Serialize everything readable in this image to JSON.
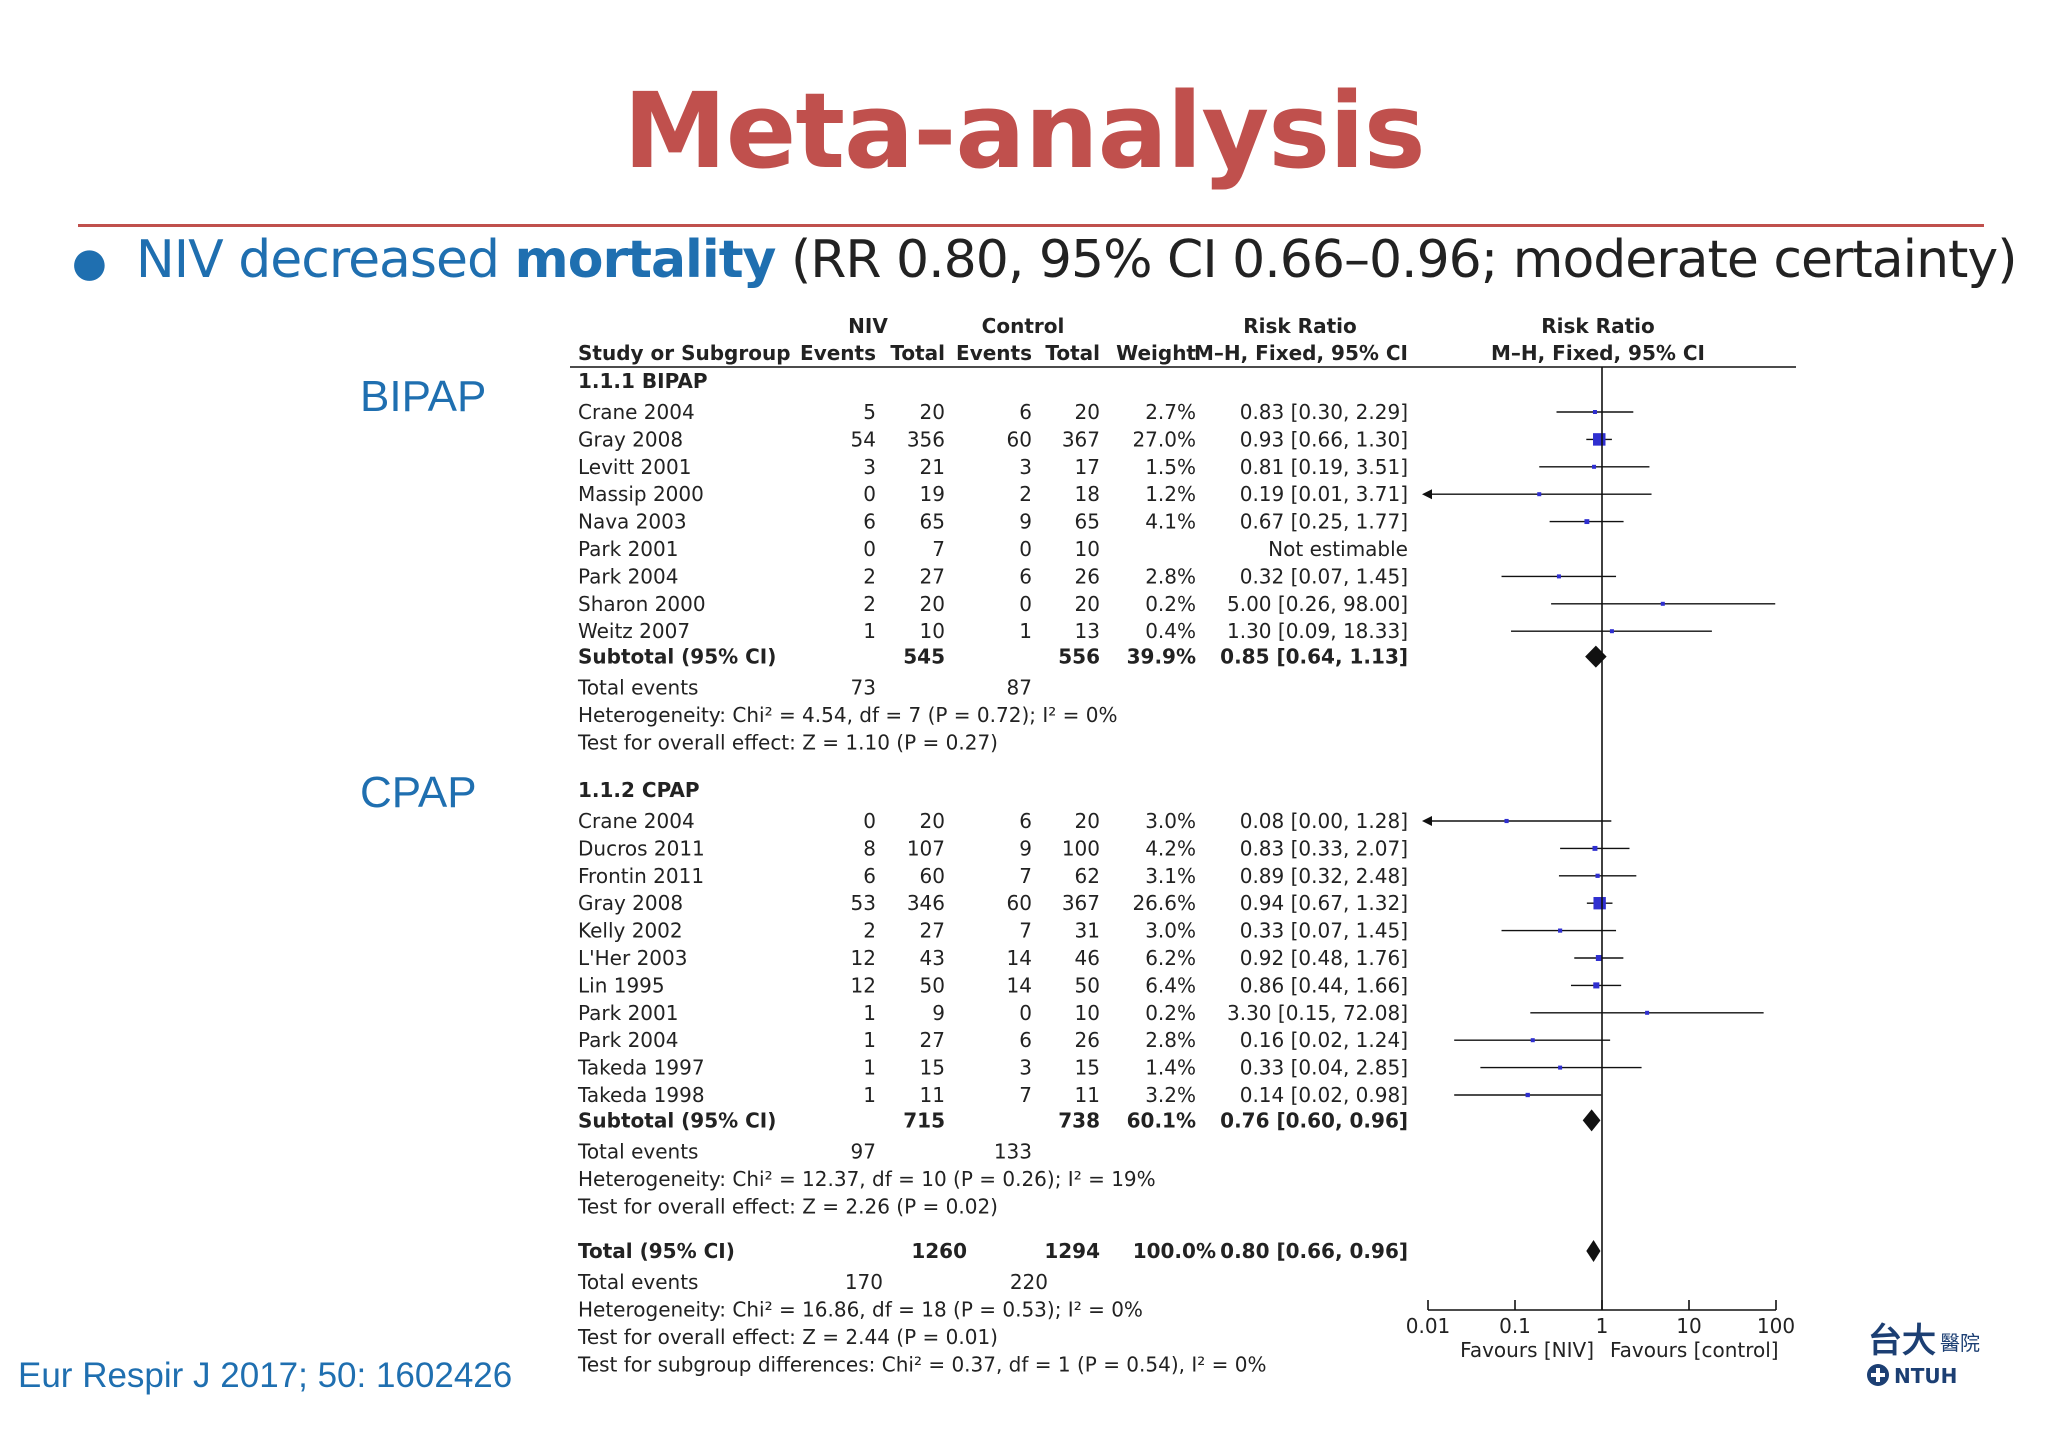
{
  "slide": {
    "title": "Meta-analysis",
    "bullet": {
      "prefix": "NIV decreased ",
      "bold": "mortality",
      "suffix": " (RR 0.80, 95% CI 0.66–0.96; moderate certainty)"
    },
    "labels": {
      "bipap": "BIPAP",
      "cpap": "CPAP"
    },
    "citation": "Eur Respir J 2017; 50: 1602426",
    "logo": {
      "chinese": "台大醫院",
      "text": "NTUH"
    }
  },
  "colors": {
    "title": "#c0504d",
    "accent": "#1f6fb0",
    "marker": "#2f2fd0"
  },
  "forest": {
    "headers": {
      "study": "Study or Subgroup",
      "niv": "NIV",
      "control": "Control",
      "events": "Events",
      "total": "Total",
      "weight": "Weight",
      "rr": "Risk Ratio",
      "method": "M–H, Fixed, 95% CI"
    },
    "axis": {
      "ticks": [
        "0.01",
        "0.1",
        "1",
        "10",
        "100"
      ],
      "left": "Favours [NIV]",
      "right": "Favours [control]"
    },
    "groups": [
      {
        "name": "1.1.1 BIPAP",
        "studies": [
          {
            "study": "Crane 2004",
            "e1": "5",
            "t1": "20",
            "e2": "6",
            "t2": "20",
            "w": "2.7%",
            "ci": "0.83 [0.30, 2.29]",
            "rr": 0.83,
            "lo": 0.3,
            "hi": 2.29
          },
          {
            "study": "Gray 2008",
            "e1": "54",
            "t1": "356",
            "e2": "60",
            "t2": "367",
            "w": "27.0%",
            "ci": "0.93 [0.66, 1.30]",
            "rr": 0.93,
            "lo": 0.66,
            "hi": 1.3
          },
          {
            "study": "Levitt 2001",
            "e1": "3",
            "t1": "21",
            "e2": "3",
            "t2": "17",
            "w": "1.5%",
            "ci": "0.81 [0.19, 3.51]",
            "rr": 0.81,
            "lo": 0.19,
            "hi": 3.51
          },
          {
            "study": "Massip 2000",
            "e1": "0",
            "t1": "19",
            "e2": "2",
            "t2": "18",
            "w": "1.2%",
            "ci": "0.19 [0.01, 3.71]",
            "rr": 0.19,
            "lo": 0.01,
            "hi": 3.71
          },
          {
            "study": "Nava 2003",
            "e1": "6",
            "t1": "65",
            "e2": "9",
            "t2": "65",
            "w": "4.1%",
            "ci": "0.67 [0.25, 1.77]",
            "rr": 0.67,
            "lo": 0.25,
            "hi": 1.77
          },
          {
            "study": "Park 2001",
            "e1": "0",
            "t1": "7",
            "e2": "0",
            "t2": "10",
            "w": "",
            "ci": "Not estimable",
            "rr": null,
            "lo": null,
            "hi": null
          },
          {
            "study": "Park 2004",
            "e1": "2",
            "t1": "27",
            "e2": "6",
            "t2": "26",
            "w": "2.8%",
            "ci": "0.32 [0.07, 1.45]",
            "rr": 0.32,
            "lo": 0.07,
            "hi": 1.45
          },
          {
            "study": "Sharon 2000",
            "e1": "2",
            "t1": "20",
            "e2": "0",
            "t2": "20",
            "w": "0.2%",
            "ci": "5.00 [0.26, 98.00]",
            "rr": 5.0,
            "lo": 0.26,
            "hi": 98.0
          },
          {
            "study": "Weitz 2007",
            "e1": "1",
            "t1": "10",
            "e2": "1",
            "t2": "13",
            "w": "0.4%",
            "ci": "1.30 [0.09, 18.33]",
            "rr": 1.3,
            "lo": 0.09,
            "hi": 18.33
          }
        ],
        "subtotal": {
          "label": "Subtotal (95% CI)",
          "t1": "545",
          "t2": "556",
          "w": "39.9%",
          "ci": "0.85 [0.64, 1.13]",
          "rr": 0.85,
          "lo": 0.64,
          "hi": 1.13
        },
        "total_events": {
          "label": "Total events",
          "e1": "73",
          "e2": "87"
        },
        "heterogeneity": "Heterogeneity: Chi² = 4.54, df = 7 (P = 0.72); I² = 0%",
        "overall": "Test for overall effect: Z = 1.10 (P = 0.27)"
      },
      {
        "name": "1.1.2 CPAP",
        "studies": [
          {
            "study": "Crane 2004",
            "e1": "0",
            "t1": "20",
            "e2": "6",
            "t2": "20",
            "w": "3.0%",
            "ci": "0.08 [0.00, 1.28]",
            "rr": 0.08,
            "lo": 0.005,
            "hi": 1.28
          },
          {
            "study": "Ducros 2011",
            "e1": "8",
            "t1": "107",
            "e2": "9",
            "t2": "100",
            "w": "4.2%",
            "ci": "0.83 [0.33, 2.07]",
            "rr": 0.83,
            "lo": 0.33,
            "hi": 2.07
          },
          {
            "study": "Frontin 2011",
            "e1": "6",
            "t1": "60",
            "e2": "7",
            "t2": "62",
            "w": "3.1%",
            "ci": "0.89 [0.32, 2.48]",
            "rr": 0.89,
            "lo": 0.32,
            "hi": 2.48
          },
          {
            "study": "Gray 2008",
            "e1": "53",
            "t1": "346",
            "e2": "60",
            "t2": "367",
            "w": "26.6%",
            "ci": "0.94 [0.67, 1.32]",
            "rr": 0.94,
            "lo": 0.67,
            "hi": 1.32
          },
          {
            "study": "Kelly 2002",
            "e1": "2",
            "t1": "27",
            "e2": "7",
            "t2": "31",
            "w": "3.0%",
            "ci": "0.33 [0.07, 1.45]",
            "rr": 0.33,
            "lo": 0.07,
            "hi": 1.45
          },
          {
            "study": "L'Her 2003",
            "e1": "12",
            "t1": "43",
            "e2": "14",
            "t2": "46",
            "w": "6.2%",
            "ci": "0.92 [0.48, 1.76]",
            "rr": 0.92,
            "lo": 0.48,
            "hi": 1.76
          },
          {
            "study": "Lin 1995",
            "e1": "12",
            "t1": "50",
            "e2": "14",
            "t2": "50",
            "w": "6.4%",
            "ci": "0.86 [0.44, 1.66]",
            "rr": 0.86,
            "lo": 0.44,
            "hi": 1.66
          },
          {
            "study": "Park 2001",
            "e1": "1",
            "t1": "9",
            "e2": "0",
            "t2": "10",
            "w": "0.2%",
            "ci": "3.30 [0.15, 72.08]",
            "rr": 3.3,
            "lo": 0.15,
            "hi": 72.08
          },
          {
            "study": "Park 2004",
            "e1": "1",
            "t1": "27",
            "e2": "6",
            "t2": "26",
            "w": "2.8%",
            "ci": "0.16 [0.02, 1.24]",
            "rr": 0.16,
            "lo": 0.02,
            "hi": 1.24
          },
          {
            "study": "Takeda 1997",
            "e1": "1",
            "t1": "15",
            "e2": "3",
            "t2": "15",
            "w": "1.4%",
            "ci": "0.33 [0.04, 2.85]",
            "rr": 0.33,
            "lo": 0.04,
            "hi": 2.85
          },
          {
            "study": "Takeda 1998",
            "e1": "1",
            "t1": "11",
            "e2": "7",
            "t2": "11",
            "w": "3.2%",
            "ci": "0.14 [0.02, 0.98]",
            "rr": 0.14,
            "lo": 0.02,
            "hi": 0.98
          }
        ],
        "subtotal": {
          "label": "Subtotal (95% CI)",
          "t1": "715",
          "t2": "738",
          "w": "60.1%",
          "ci": "0.76 [0.60, 0.96]",
          "rr": 0.76,
          "lo": 0.6,
          "hi": 0.96
        },
        "total_events": {
          "label": "Total events",
          "e1": "97",
          "e2": "133"
        },
        "heterogeneity": "Heterogeneity: Chi² = 12.37, df = 10 (P = 0.26); I² = 19%",
        "overall": "Test for overall effect: Z = 2.26 (P = 0.02)"
      }
    ],
    "total": {
      "label": "Total (95% CI)",
      "t1": "1260",
      "t2": "1294",
      "w": "100.0%",
      "ci": "0.80 [0.66, 0.96]",
      "rr": 0.8,
      "lo": 0.66,
      "hi": 0.96
    },
    "total_events": {
      "label": "Total events",
      "e1": "170",
      "e2": "220"
    },
    "footer": [
      "Heterogeneity: Chi² = 16.86, df = 18 (P = 0.53); I² = 0%",
      "Test for overall effect: Z = 2.44 (P = 0.01)",
      "Test for subgroup differences: Chi² = 0.37, df = 1 (P = 0.54), I² = 0%"
    ]
  }
}
